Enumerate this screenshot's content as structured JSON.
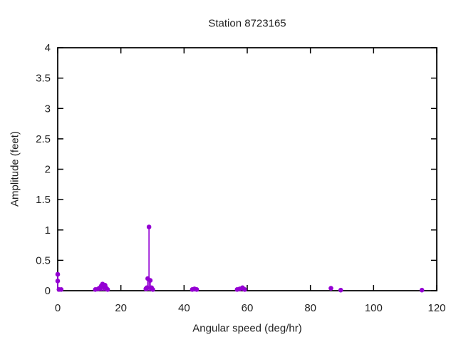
{
  "title": "Station 8723165",
  "colors": {
    "series": "#9400d3",
    "axis": "#000000",
    "text": "#1f1f1f",
    "background": "#ffffff"
  },
  "chart_data": {
    "type": "scatter",
    "style": "impulses-with-points",
    "title": "Station 8723165",
    "xlabel": "Angular speed (deg/hr)",
    "ylabel": "Amplitude (feet)",
    "xlim": [
      0,
      120
    ],
    "ylim": [
      0,
      4
    ],
    "xticks": [
      0,
      20,
      40,
      60,
      80,
      100,
      120
    ],
    "yticks": [
      0,
      0.5,
      1,
      1.5,
      2,
      2.5,
      3,
      3.5,
      4
    ],
    "grid": false,
    "legend": "none",
    "tick_style": "inward-mirrored",
    "points": [
      {
        "x": 0,
        "y": 0.27
      },
      {
        "x": 0,
        "y": 0.16
      },
      {
        "x": 0.4,
        "y": 0.02
      },
      {
        "x": 1.1,
        "y": 0.02
      },
      {
        "x": 11.9,
        "y": 0.02
      },
      {
        "x": 12.8,
        "y": 0.03
      },
      {
        "x": 13.4,
        "y": 0.05
      },
      {
        "x": 13.8,
        "y": 0.08
      },
      {
        "x": 14.2,
        "y": 0.11
      },
      {
        "x": 14.6,
        "y": 0.06
      },
      {
        "x": 15.0,
        "y": 0.09
      },
      {
        "x": 15.4,
        "y": 0.04
      },
      {
        "x": 15.8,
        "y": 0.02
      },
      {
        "x": 27.9,
        "y": 0.03
      },
      {
        "x": 28.2,
        "y": 0.05
      },
      {
        "x": 28.5,
        "y": 0.2
      },
      {
        "x": 28.9,
        "y": 1.05
      },
      {
        "x": 29.3,
        "y": 0.17
      },
      {
        "x": 29.7,
        "y": 0.05
      },
      {
        "x": 30.1,
        "y": 0.02
      },
      {
        "x": 42.6,
        "y": 0.02
      },
      {
        "x": 43.3,
        "y": 0.03
      },
      {
        "x": 44.0,
        "y": 0.02
      },
      {
        "x": 56.8,
        "y": 0.02
      },
      {
        "x": 57.6,
        "y": 0.03
      },
      {
        "x": 58.5,
        "y": 0.05
      },
      {
        "x": 59.2,
        "y": 0.02
      },
      {
        "x": 86.5,
        "y": 0.04
      },
      {
        "x": 89.6,
        "y": 0.01
      },
      {
        "x": 115.3,
        "y": 0.01
      }
    ]
  }
}
